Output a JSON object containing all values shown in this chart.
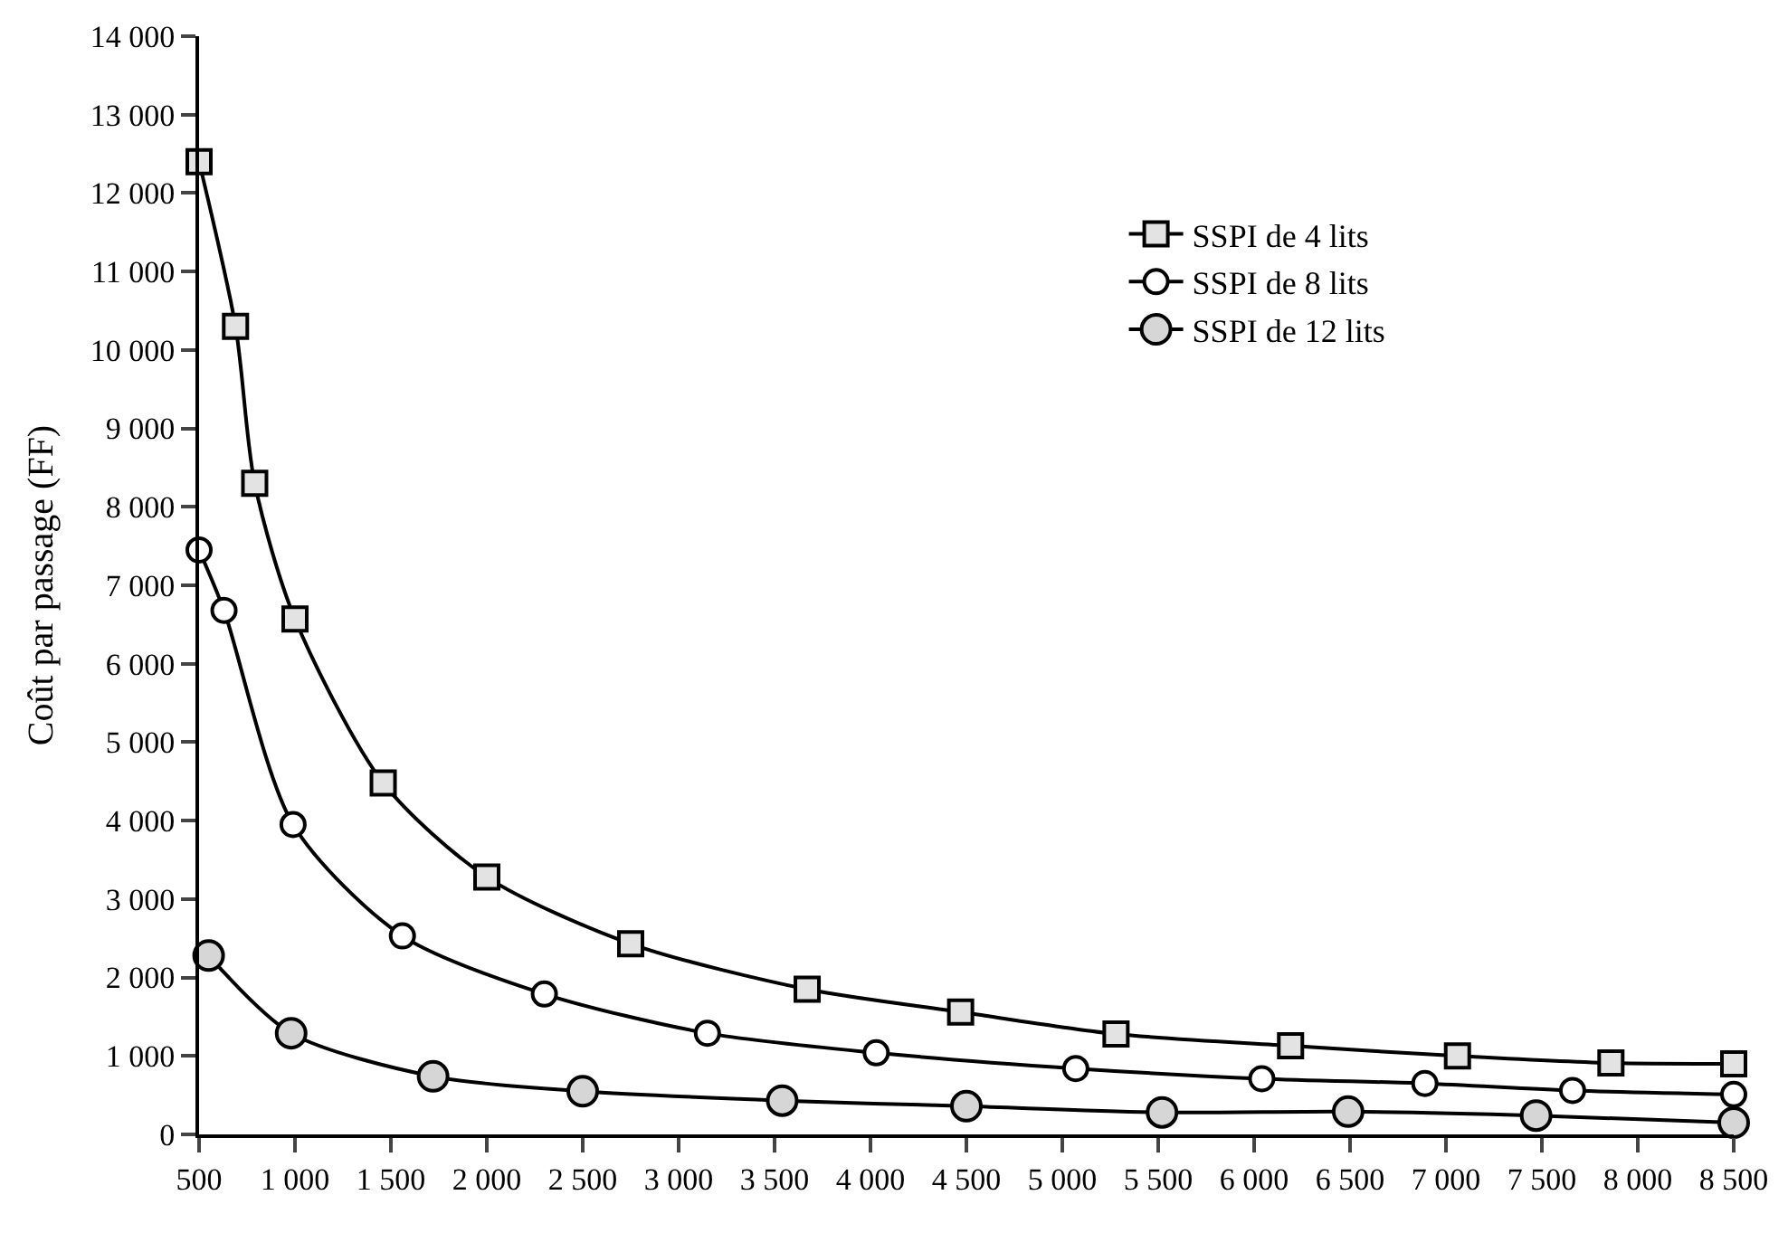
{
  "chart_data": {
    "type": "line",
    "ylabel": "Coût par passage (FF)",
    "xlim": [
      500,
      8500
    ],
    "xticks": [
      {
        "value": 500,
        "label": "500"
      },
      {
        "value": 1000,
        "label": "1 000"
      },
      {
        "value": 1500,
        "label": "1 500"
      },
      {
        "value": 2000,
        "label": "2 000"
      },
      {
        "value": 2500,
        "label": "2 500"
      },
      {
        "value": 3000,
        "label": "3 000"
      },
      {
        "value": 3500,
        "label": "3 500"
      },
      {
        "value": 4000,
        "label": "4 000"
      },
      {
        "value": 4500,
        "label": "4 500"
      },
      {
        "value": 5000,
        "label": "5 000"
      },
      {
        "value": 5500,
        "label": "5 500"
      },
      {
        "value": 6000,
        "label": "6 000"
      },
      {
        "value": 6500,
        "label": "6 500"
      },
      {
        "value": 7000,
        "label": "7 000"
      },
      {
        "value": 7500,
        "label": "7 500"
      },
      {
        "value": 8000,
        "label": "8 000"
      },
      {
        "value": 8500,
        "label": "8 500"
      }
    ],
    "ylim": [
      0,
      14000
    ],
    "yticks": [
      0,
      {
        "value": 1000,
        "label": "1 000"
      },
      {
        "value": 2000,
        "label": "2 000"
      },
      {
        "value": 3000,
        "label": "3 000"
      },
      {
        "value": 4000,
        "label": "4 000"
      },
      {
        "value": 5000,
        "label": "5 000"
      },
      {
        "value": 6000,
        "label": "6 000"
      },
      {
        "value": 7000,
        "label": "7 000"
      },
      {
        "value": 8000,
        "label": "8 000"
      },
      {
        "value": 9000,
        "label": "9 000"
      },
      {
        "value": 10000,
        "label": "10 000"
      },
      {
        "value": 11000,
        "label": "11 000"
      },
      {
        "value": 12000,
        "label": "12 000"
      },
      {
        "value": 13000,
        "label": "13 000"
      },
      {
        "value": 14000,
        "label": "14 000"
      }
    ],
    "legend": "right",
    "line_style": "solid",
    "series": [
      {
        "name": "SSPI de 4 lits",
        "color": "#e3e3e3",
        "marker": "square",
        "x": [
          500,
          690,
          790,
          1000,
          1460,
          2000,
          2750,
          3670,
          4470,
          5280,
          6190,
          7060,
          7860,
          8500
        ],
        "values": [
          12400,
          10300,
          8300,
          6570,
          4480,
          3280,
          2430,
          1850,
          1560,
          1280,
          1130,
          1000,
          910,
          900
        ]
      },
      {
        "name": "SSPI de 8 lits",
        "color": "#ffffff",
        "marker": "circle",
        "x": [
          500,
          630,
          990,
          1560,
          2300,
          3150,
          4030,
          5070,
          6040,
          6890,
          7660,
          8500
        ],
        "values": [
          7450,
          6680,
          3950,
          2530,
          1790,
          1290,
          1040,
          840,
          710,
          650,
          560,
          510
        ]
      },
      {
        "name": "SSPI de 12 lits",
        "color": "#d6d6d6",
        "marker": "circle",
        "x": [
          550,
          980,
          1720,
          2500,
          3540,
          4500,
          5520,
          6490,
          7470,
          8500
        ],
        "values": [
          2280,
          1290,
          740,
          550,
          430,
          360,
          280,
          290,
          240,
          150
        ]
      }
    ]
  }
}
